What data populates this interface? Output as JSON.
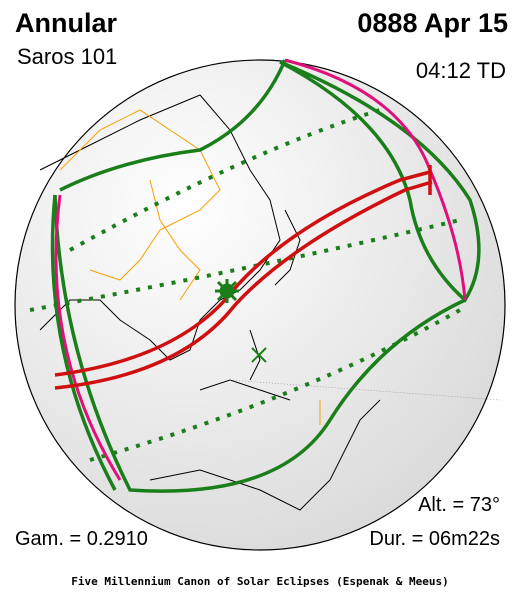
{
  "header": {
    "type": "Annular",
    "date": "0888 Apr 15",
    "saros": "Saros 101",
    "time": "04:12 TD"
  },
  "parameters": {
    "altitude": "Alt. = 73°",
    "gamma": "Gam. = 0.2910",
    "duration": "Dur. = 06m22s"
  },
  "footer": "Five Millennium Canon of Solar Eclipses (Espenak & Meeus)"
}
